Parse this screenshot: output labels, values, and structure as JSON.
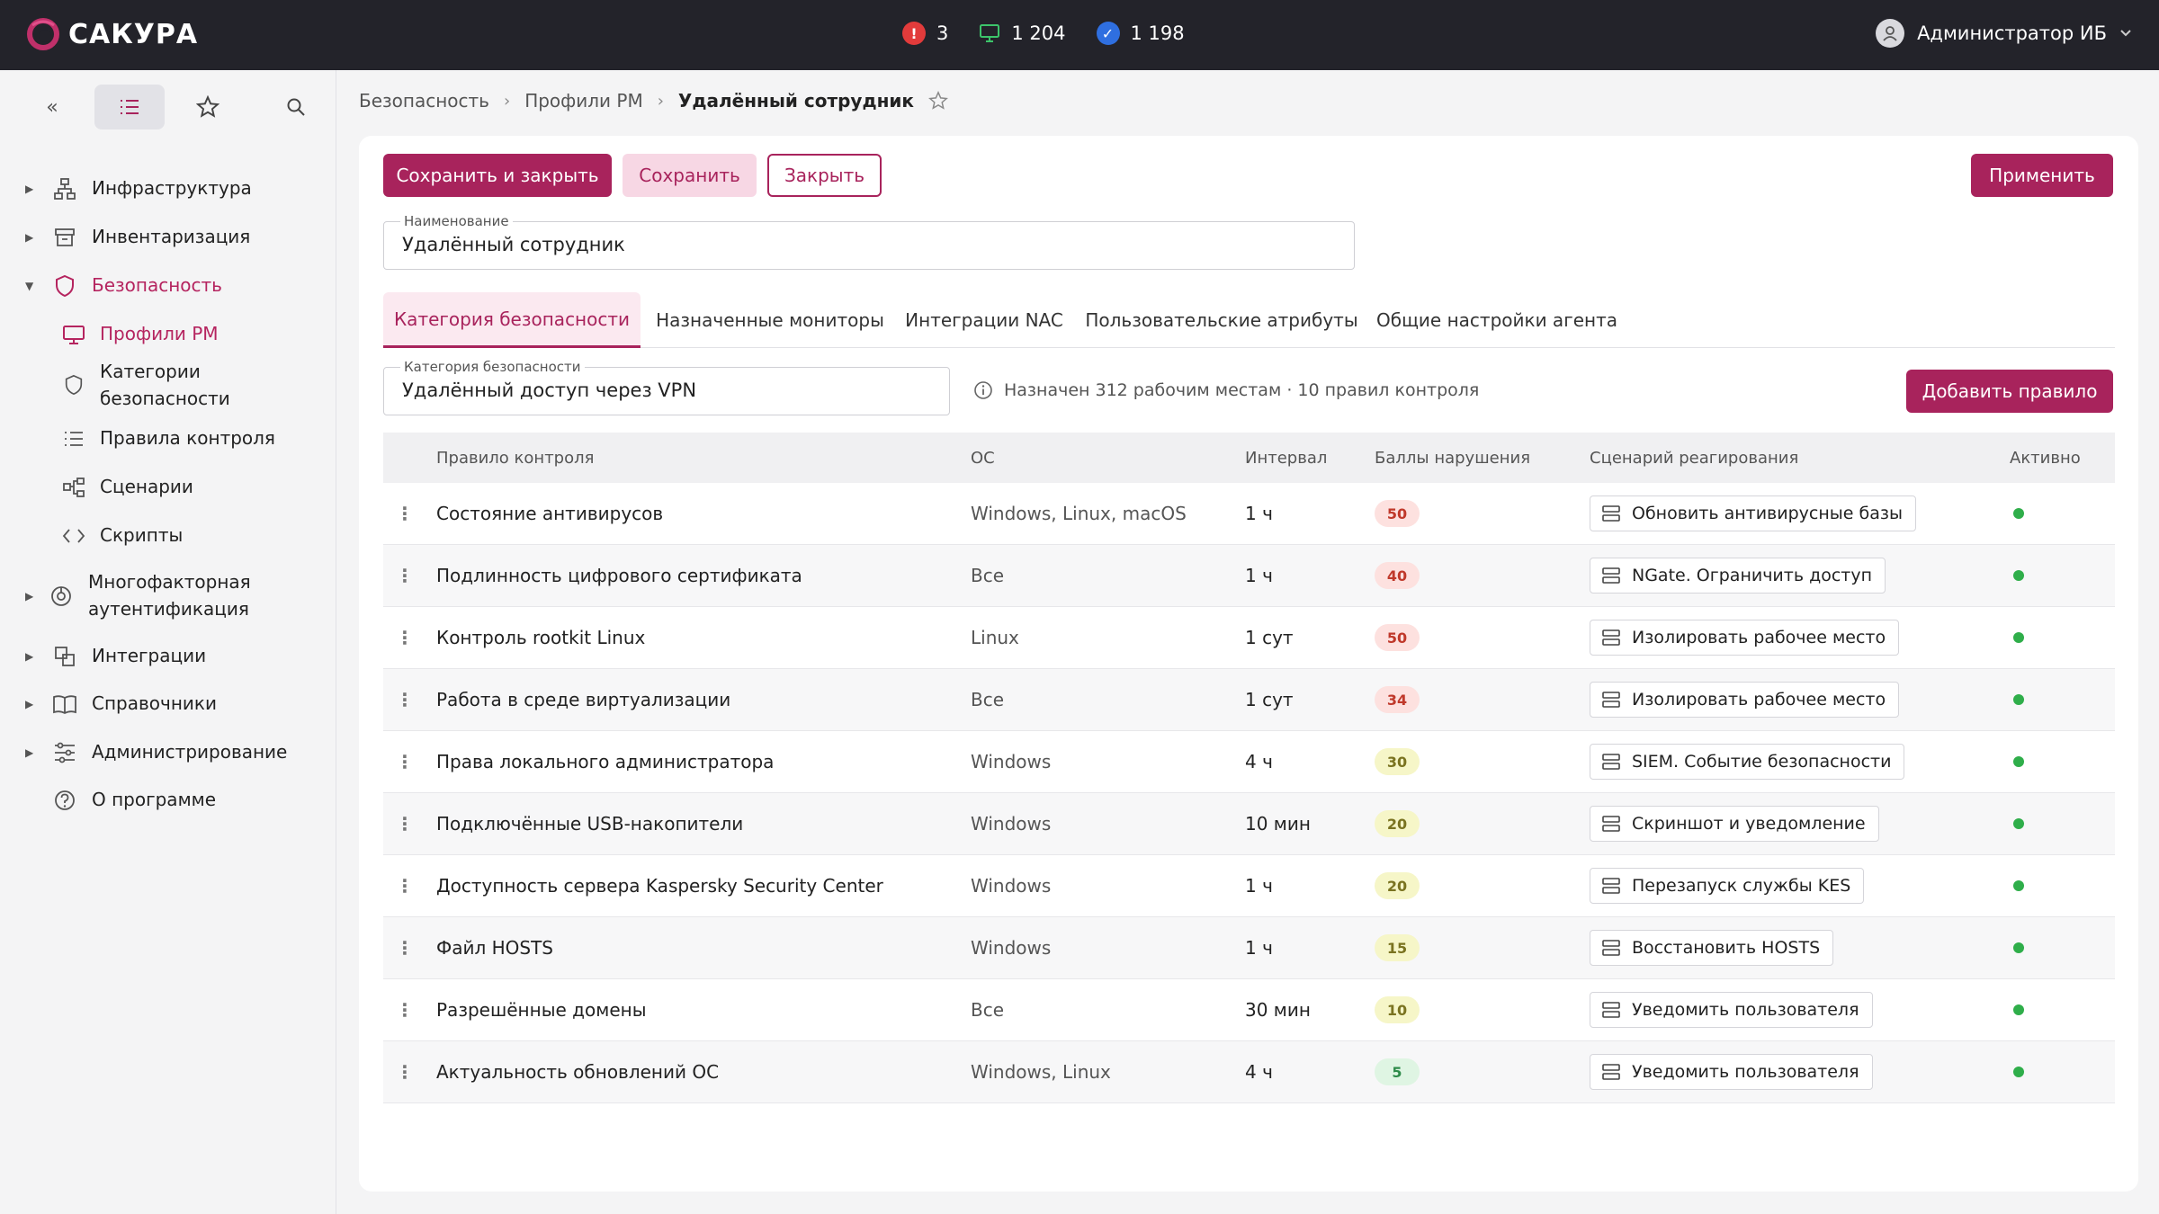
{
  "app": {
    "logo_text": "САКУРА"
  },
  "topbar": {
    "alerts": "3",
    "monitors": "1 204",
    "compliant": "1 198",
    "user_name": "Администратор ИБ"
  },
  "colors": {
    "accent": "#a8235c",
    "topbar": "#23232a",
    "ok": "#2fae4a"
  },
  "sidebar": {
    "tools": [
      "collapse-icon",
      "list-icon",
      "star-icon",
      "search-icon"
    ],
    "items": [
      {
        "label": "Инфраструктура",
        "icon": "network-icon"
      },
      {
        "label": "Инвентаризация",
        "icon": "archive-icon"
      },
      {
        "label": "Безопасность",
        "icon": "shield-icon"
      },
      {
        "label": "Профили РМ",
        "icon": "monitor-icon"
      },
      {
        "label": "Категории",
        "label2": "безопасности",
        "icon": "shield-icon"
      },
      {
        "label": "Правила контроля",
        "icon": "list-icon"
      },
      {
        "label": "Сценарии",
        "icon": "flow-icon"
      },
      {
        "label": "Скрипты",
        "icon": "code-icon"
      },
      {
        "label": "Многофакторная",
        "label2": "аутентификация",
        "icon": "gauge-icon"
      },
      {
        "label": "Интеграции",
        "icon": "integration-icon"
      },
      {
        "label": "Справочники",
        "icon": "book-icon"
      },
      {
        "label": "Администрирование",
        "icon": "sliders-icon"
      },
      {
        "label": "О программе",
        "icon": "help-icon"
      }
    ]
  },
  "breadcrumb": {
    "items": [
      "Безопасность",
      "Профили РМ",
      "Удалённый сотрудник"
    ]
  },
  "toolbar": {
    "save_close": "Сохранить и закрыть",
    "save": "Сохранить",
    "close": "Закрыть",
    "apply": "Применить"
  },
  "name_field": {
    "label": "Наименование",
    "value": "Удалённый сотрудник"
  },
  "tabs": [
    "Категория безопасности",
    "Назначенные мониторы",
    "Интеграции NAC",
    "Пользовательские атрибуты",
    "Общие настройки агента"
  ],
  "category_field": {
    "label": "Категория безопасности",
    "value": "Удалённый доступ через VPN"
  },
  "info_text": "Назначен 312 рабочим местам · 10 правил контроля",
  "add_rule": "Добавить правило",
  "table": {
    "headers": [
      "Правило контроля",
      "ОС",
      "Интервал",
      "Баллы нарушения",
      "Сценарий реагирования",
      "Активно"
    ],
    "rows": [
      {
        "rule": "Состояние антивирусов",
        "os": "Windows, Linux, macOS",
        "interval": "1 ч",
        "score": "50",
        "level": "high",
        "scenario": "Обновить антивирусные базы"
      },
      {
        "rule": "Подлинность цифрового сертификата",
        "os": "Все",
        "interval": "1 ч",
        "score": "40",
        "level": "high",
        "scenario": "NGate. Ограничить доступ"
      },
      {
        "rule": "Контроль rootkit Linux",
        "os": "Linux",
        "interval": "1 сут",
        "score": "50",
        "level": "high",
        "scenario": "Изолировать рабочее место"
      },
      {
        "rule": "Работа в среде виртуализации",
        "os": "Все",
        "interval": "1 сут",
        "score": "34",
        "level": "high",
        "scenario": "Изолировать рабочее место"
      },
      {
        "rule": "Права локального администратора",
        "os": "Windows",
        "interval": "4 ч",
        "score": "30",
        "level": "mid",
        "scenario": "SIEM. Событие безопасности"
      },
      {
        "rule": "Подключённые USB-накопители",
        "os": "Windows",
        "interval": "10 мин",
        "score": "20",
        "level": "mid",
        "scenario": "Скриншот и уведомление"
      },
      {
        "rule": "Доступность сервера Kaspersky Security Center",
        "os": "Windows",
        "interval": "1 ч",
        "score": "20",
        "level": "mid",
        "scenario": "Перезапуск службы KES"
      },
      {
        "rule": "Файл HOSTS",
        "os": "Windows",
        "interval": "1 ч",
        "score": "15",
        "level": "mid",
        "scenario": "Восстановить HOSTS"
      },
      {
        "rule": "Разрешённые домены",
        "os": "Все",
        "interval": "30 мин",
        "score": "10",
        "level": "mid",
        "scenario": "Уведомить пользователя"
      },
      {
        "rule": "Актуальность обновлений ОС",
        "os": "Windows, Linux",
        "interval": "4 ч",
        "score": "5",
        "level": "low",
        "scenario": "Уведомить пользователя"
      }
    ]
  }
}
